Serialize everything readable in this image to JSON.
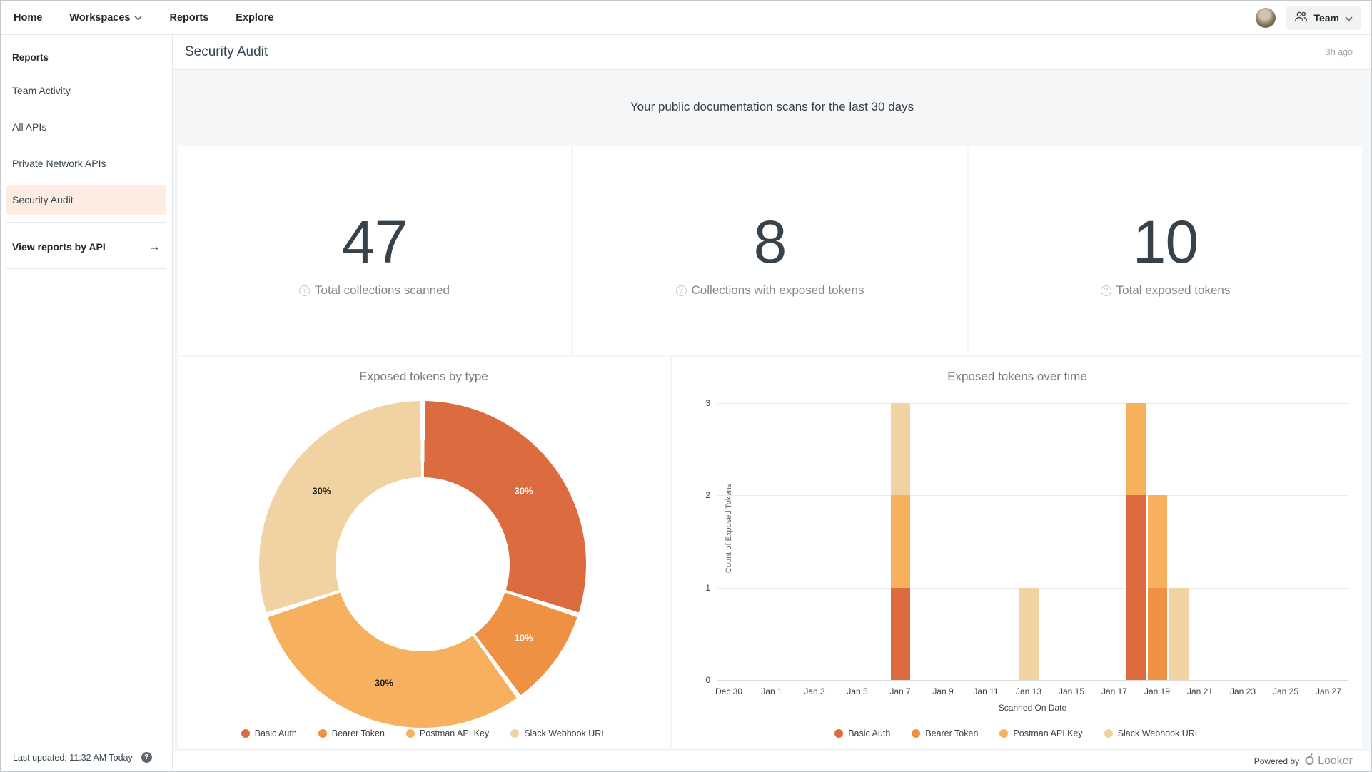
{
  "nav": {
    "items": [
      {
        "label": "Home",
        "chevron": false
      },
      {
        "label": "Workspaces",
        "chevron": true
      },
      {
        "label": "Reports",
        "chevron": false
      },
      {
        "label": "Explore",
        "chevron": false
      }
    ],
    "team_label": "Team"
  },
  "sidebar": {
    "heading": "Reports",
    "items": [
      "Team Activity",
      "All APIs",
      "Private Network APIs",
      "Security Audit"
    ],
    "active_item": "Security Audit",
    "view_by_api_label": "View reports by API",
    "last_updated": "Last updated: 11:32 AM Today"
  },
  "header": {
    "title": "Security Audit",
    "updated": "3h ago"
  },
  "banner": {
    "text": "Your public documentation scans for the last 30 days"
  },
  "stats": [
    {
      "value": "47",
      "label": "Total collections scanned"
    },
    {
      "value": "8",
      "label": "Collections with exposed tokens"
    },
    {
      "value": "10",
      "label": "Total exposed tokens"
    }
  ],
  "icons": {
    "help": "?",
    "arrow_right": "→"
  },
  "colors": {
    "basic_auth": "#DC6B40",
    "bearer_token": "#EF9142",
    "postman_api_key": "#F7B15E",
    "slack_webhook_url": "#F1D2A2",
    "active_sidebar_bg": "#FCECE1"
  },
  "footer": {
    "powered_by": "Powered by",
    "brand": "Looker"
  },
  "chart_data": [
    {
      "type": "pie",
      "subtype": "donut",
      "title": "Exposed tokens by type",
      "inner_radius_ratio": 0.53,
      "legend_position": "bottom",
      "slices": [
        {
          "label": "Basic Auth",
          "value": 3,
          "pct": 30,
          "color": "#DC6B40",
          "text_color": "#ffffff"
        },
        {
          "label": "Bearer Token",
          "value": 1,
          "pct": 10,
          "color": "#EF9142",
          "text_color": "#ffffff"
        },
        {
          "label": "Postman API Key",
          "value": 3,
          "pct": 30,
          "color": "#F7B15E",
          "text_color": "#212121"
        },
        {
          "label": "Slack Webhook URL",
          "value": 3,
          "pct": 30,
          "color": "#F1D2A2",
          "text_color": "#212121"
        }
      ]
    },
    {
      "type": "bar",
      "subtype": "stacked",
      "title": "Exposed tokens over time",
      "xlabel": "Scanned On Date",
      "ylabel": "Count of Exposed Tokens",
      "ylim": [
        0,
        3
      ],
      "yticks": [
        0,
        1,
        2,
        3
      ],
      "grid": true,
      "legend_position": "bottom",
      "xticks": [
        "Dec 30",
        "Jan 1",
        "Jan 3",
        "Jan 5",
        "Jan 7",
        "Jan 9",
        "Jan 11",
        "Jan 13",
        "Jan 15",
        "Jan 17",
        "Jan 19",
        "Jan 21",
        "Jan 23",
        "Jan 25",
        "Jan 27"
      ],
      "x_range_days": 28,
      "tick_every_days": 2,
      "series_colors": {
        "Basic Auth": "#DC6B40",
        "Bearer Token": "#EF9142",
        "Postman API Key": "#F7B15E",
        "Slack Webhook URL": "#F1D2A2"
      },
      "legend": [
        "Basic Auth",
        "Bearer Token",
        "Postman API Key",
        "Slack Webhook URL"
      ],
      "bars": [
        {
          "x": "Jan 7",
          "day": 8,
          "segments": [
            {
              "series": "Basic Auth",
              "value": 1
            },
            {
              "series": "Postman API Key",
              "value": 1
            },
            {
              "series": "Slack Webhook URL",
              "value": 1
            }
          ]
        },
        {
          "x": "Jan 13",
          "day": 14,
          "segments": [
            {
              "series": "Slack Webhook URL",
              "value": 1
            }
          ]
        },
        {
          "x": "Jan 18",
          "day": 19,
          "segments": [
            {
              "series": "Basic Auth",
              "value": 2
            },
            {
              "series": "Postman API Key",
              "value": 1
            }
          ]
        },
        {
          "x": "Jan 19",
          "day": 20,
          "segments": [
            {
              "series": "Bearer Token",
              "value": 1
            },
            {
              "series": "Postman API Key",
              "value": 1
            }
          ]
        },
        {
          "x": "Jan 20",
          "day": 21,
          "segments": [
            {
              "series": "Slack Webhook URL",
              "value": 1
            }
          ]
        }
      ]
    }
  ]
}
